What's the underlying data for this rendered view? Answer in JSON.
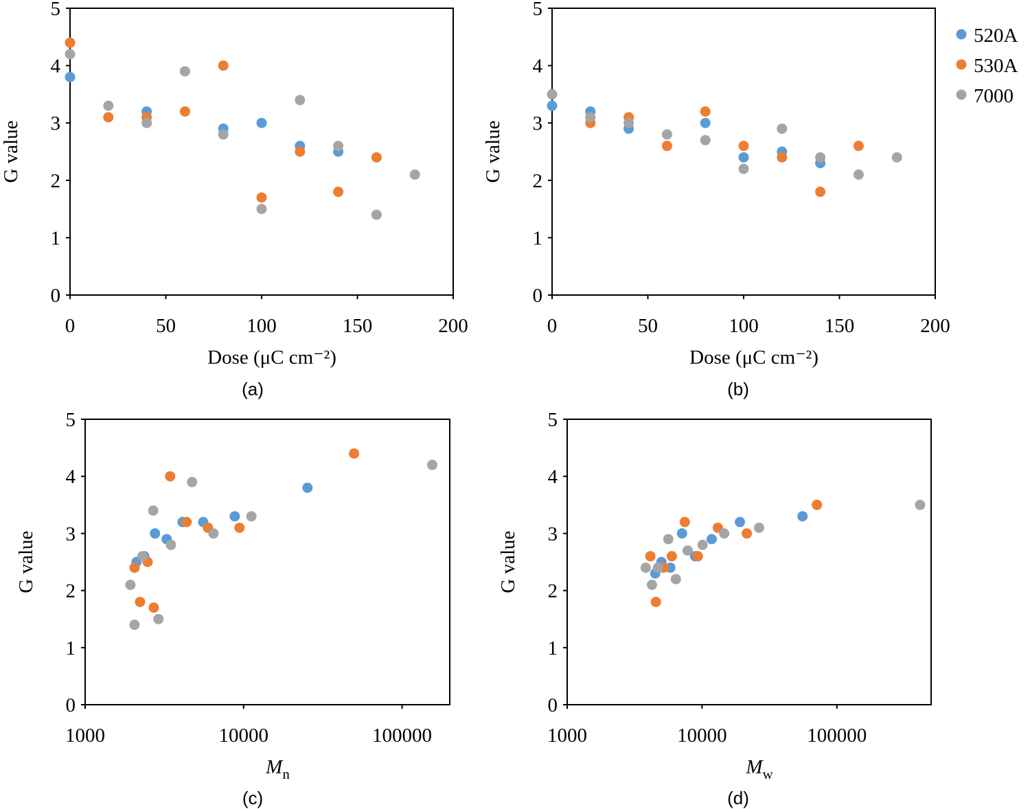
{
  "chart_data": [
    {
      "type": "scatter",
      "caption": "(a)",
      "x_label": "Dose (μC cm⁻²)",
      "y_label": "G value",
      "xlim": [
        0,
        200
      ],
      "xticks": [
        0,
        50,
        100,
        150,
        200
      ],
      "ylim": [
        0,
        5
      ],
      "yticks": [
        0,
        1,
        2,
        3,
        4,
        5
      ],
      "series": [
        {
          "color": "#5b9bd5",
          "x": [
            0,
            40,
            80,
            100,
            120,
            140
          ],
          "values": [
            3.8,
            3.2,
            2.9,
            3.0,
            2.6,
            2.5
          ]
        },
        {
          "color": "#ed7d31",
          "x": [
            0,
            20,
            40,
            60,
            80,
            100,
            120,
            140,
            160
          ],
          "values": [
            4.4,
            3.1,
            3.1,
            3.2,
            4.0,
            1.7,
            2.5,
            1.8,
            2.4
          ]
        },
        {
          "color": "#a5a5a5",
          "x": [
            0,
            20,
            40,
            60,
            80,
            100,
            120,
            140,
            160,
            180
          ],
          "values": [
            4.2,
            3.3,
            3.0,
            3.9,
            2.8,
            1.5,
            3.4,
            2.6,
            1.4,
            2.1
          ]
        }
      ]
    },
    {
      "type": "scatter",
      "caption": "(b)",
      "x_label": "Dose (μC cm⁻²)",
      "y_label": "G value",
      "legend": "right",
      "xlim": [
        0,
        200
      ],
      "xticks": [
        0,
        50,
        100,
        150,
        200
      ],
      "ylim": [
        0,
        5
      ],
      "yticks": [
        0,
        1,
        2,
        3,
        4,
        5
      ],
      "series": [
        {
          "name": "520A",
          "color": "#5b9bd5",
          "x": [
            0,
            20,
            40,
            80,
            100,
            120,
            140
          ],
          "values": [
            3.3,
            3.2,
            2.9,
            3.0,
            2.4,
            2.5,
            2.3
          ]
        },
        {
          "name": "530A",
          "color": "#ed7d31",
          "x": [
            20,
            40,
            60,
            80,
            100,
            120,
            140,
            160
          ],
          "values": [
            3.0,
            3.1,
            2.6,
            3.2,
            2.6,
            2.4,
            1.8,
            2.6
          ]
        },
        {
          "name": "7000",
          "color": "#a5a5a5",
          "x": [
            0,
            20,
            40,
            60,
            80,
            100,
            120,
            140,
            160,
            180
          ],
          "values": [
            3.5,
            3.1,
            3.0,
            2.8,
            2.7,
            2.2,
            2.9,
            2.4,
            2.1,
            2.4
          ]
        }
      ]
    },
    {
      "type": "scatter",
      "caption": "(c)",
      "x_label": {
        "base": "M",
        "sub": "n"
      },
      "y_label": "G value",
      "xscale": "log",
      "xlim": [
        1000,
        200000
      ],
      "xticks": [
        1000,
        10000,
        100000
      ],
      "ylim": [
        0,
        5
      ],
      "yticks": [
        0,
        1,
        2,
        3,
        4,
        5
      ],
      "series": [
        {
          "color": "#5b9bd5",
          "x": [
            2110,
            2360,
            2760,
            3270,
            4120,
            5560,
            8790,
            25300
          ],
          "values": [
            2.5,
            2.6,
            3.0,
            2.9,
            3.2,
            3.2,
            3.3,
            3.8
          ]
        },
        {
          "color": "#ed7d31",
          "x": [
            2050,
            2220,
            2480,
            2710,
            3440,
            4370,
            5960,
            9420,
            49800
          ],
          "values": [
            2.4,
            1.8,
            2.5,
            1.7,
            4.0,
            3.2,
            3.1,
            3.1,
            4.4
          ]
        },
        {
          "color": "#a5a5a5",
          "x": [
            1930,
            2050,
            2300,
            2690,
            2900,
            3480,
            4730,
            6460,
            11200,
            155000
          ],
          "values": [
            2.1,
            1.4,
            2.6,
            3.4,
            1.5,
            2.8,
            3.9,
            3.0,
            3.3,
            4.2
          ]
        }
      ]
    },
    {
      "type": "scatter",
      "caption": "(d)",
      "x_label": {
        "base": "M",
        "sub": "w"
      },
      "y_label": "G value",
      "xscale": "log",
      "xlim": [
        1000,
        500000
      ],
      "xticks": [
        1000,
        10000,
        100000
      ],
      "ylim": [
        0,
        5
      ],
      "yticks": [
        0,
        1,
        2,
        3,
        4,
        5
      ],
      "series": [
        {
          "color": "#5b9bd5",
          "x": [
            4500,
            5000,
            5820,
            7110,
            8890,
            11800,
            19100,
            55600
          ],
          "values": [
            2.3,
            2.5,
            2.4,
            3.0,
            2.6,
            2.9,
            3.2,
            3.3
          ]
        },
        {
          "color": "#ed7d31",
          "x": [
            4140,
            4550,
            5180,
            5970,
            7450,
            9310,
            13100,
            21500,
            71100
          ],
          "values": [
            2.6,
            1.8,
            2.4,
            2.6,
            3.2,
            2.6,
            3.1,
            3.0,
            3.5
          ]
        },
        {
          "color": "#a5a5a5",
          "x": [
            3820,
            4250,
            4710,
            5620,
            6400,
            7820,
            10100,
            14600,
            26500,
            414000
          ],
          "values": [
            2.4,
            2.1,
            2.4,
            2.9,
            2.2,
            2.7,
            2.8,
            3.0,
            3.1,
            3.5
          ]
        }
      ]
    }
  ]
}
